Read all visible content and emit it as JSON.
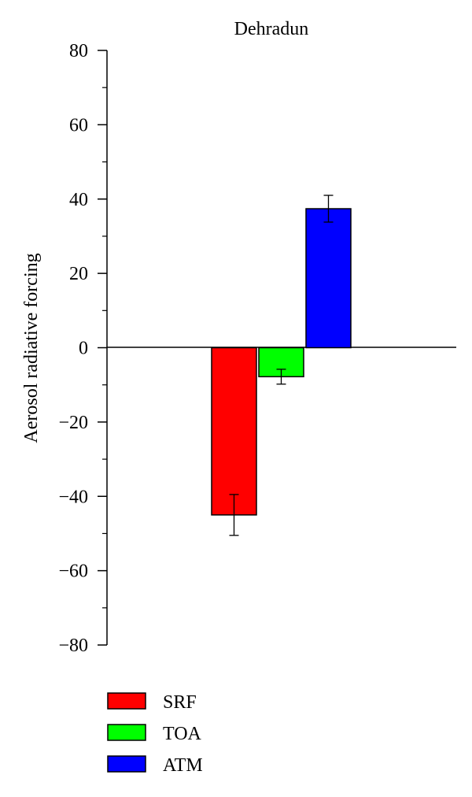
{
  "chart_data": {
    "type": "bar",
    "title": "Dehradun",
    "xlabel": "",
    "ylabel": "Aerosol radiative forcing",
    "ylim": [
      -80,
      80
    ],
    "yticks": [
      80,
      60,
      40,
      20,
      0,
      -20,
      -40,
      -60,
      -80
    ],
    "ytick_labels": [
      "80",
      "60",
      "40",
      "20",
      "0",
      "−20",
      "−40",
      "−60",
      "−80"
    ],
    "grid": false,
    "legend_position": "bottom-left",
    "series": [
      {
        "name": "SRF",
        "value": -45.0,
        "error": 5.5,
        "color": "#ff0000"
      },
      {
        "name": "TOA",
        "value": -7.8,
        "error": 2.0,
        "color": "#00ff00"
      },
      {
        "name": "ATM",
        "value": 37.4,
        "error": 3.6,
        "color": "#0000ff"
      }
    ]
  }
}
